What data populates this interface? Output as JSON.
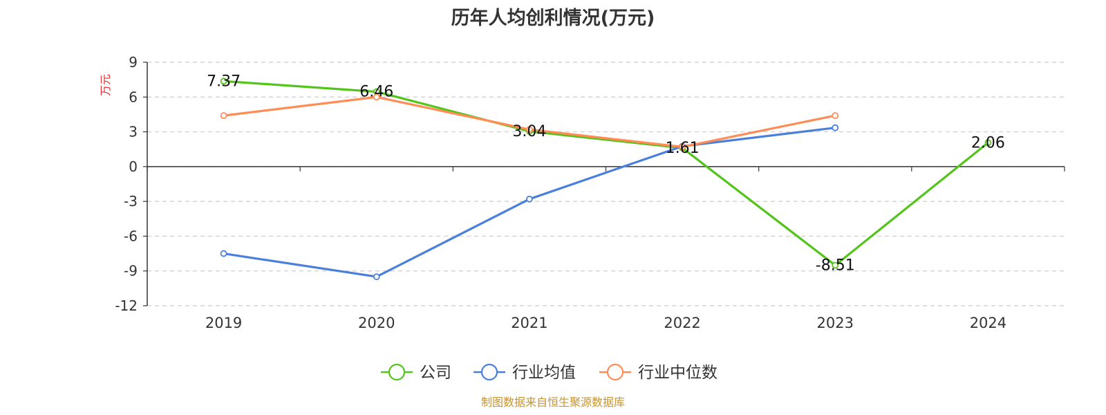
{
  "chart_data": {
    "type": "line",
    "title": "历年人均创利情况(万元)",
    "ylabel": "万元",
    "xlabel": "",
    "categories": [
      "2019",
      "2020",
      "2021",
      "2022",
      "2023",
      "2024"
    ],
    "ylim": [
      -12,
      9
    ],
    "yticks": [
      9,
      6,
      3,
      0,
      -3,
      -6,
      -9,
      -12
    ],
    "grid": true,
    "legend_position": "bottom",
    "series": [
      {
        "name": "公司",
        "color": "#52c41a",
        "values": [
          7.37,
          6.46,
          3.04,
          1.61,
          -8.51,
          2.06
        ],
        "labels": [
          "7.37",
          "6.46",
          "3.04",
          "1.61",
          "-8.51",
          "2.06"
        ]
      },
      {
        "name": "行业均值",
        "color": "#4a7fdc",
        "values": [
          -7.5,
          -9.5,
          -2.8,
          1.75,
          3.35,
          null
        ]
      },
      {
        "name": "行业中位数",
        "color": "#ff8c55",
        "values": [
          4.4,
          6.0,
          3.2,
          1.7,
          4.4,
          null
        ]
      }
    ]
  },
  "source": "制图数据来自恒生聚源数据库"
}
